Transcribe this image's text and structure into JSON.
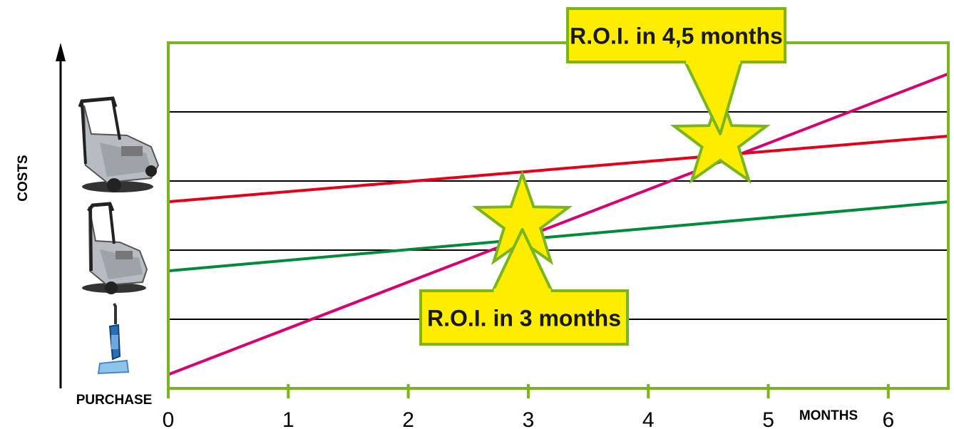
{
  "chart_data": {
    "type": "line",
    "ylabel": "COSTS",
    "xlabel": "MONTHS",
    "x_start_label": "PURCHASE",
    "xlim": [
      0,
      6.5
    ],
    "ylim": [
      0,
      10
    ],
    "x_ticks": [
      "0",
      "1",
      "2",
      "3",
      "4",
      "5",
      "6"
    ],
    "grid": true,
    "series": [
      {
        "color": "#d6006f",
        "x": [
          0,
          6.5
        ],
        "y": [
          0.4,
          9.1
        ]
      },
      {
        "color": "#e3001b",
        "x": [
          0,
          6.5
        ],
        "y": [
          5.4,
          7.3
        ]
      },
      {
        "color": "#008a3a",
        "x": [
          0,
          6.5
        ],
        "y": [
          3.4,
          5.4
        ]
      }
    ],
    "annotations": [
      {
        "text": "R.O.I. in 3 months",
        "x": 2.95
      },
      {
        "text": "R.O.I. in 4,5 months",
        "x": 4.6
      }
    ],
    "images": [
      "large-sweeper-icon",
      "small-sweeper-icon",
      "upright-vacuum-icon"
    ],
    "colors": {
      "frame": "#7ab51d",
      "callout_fill": "#ffed00",
      "callout_border": "#7ab51d"
    }
  }
}
